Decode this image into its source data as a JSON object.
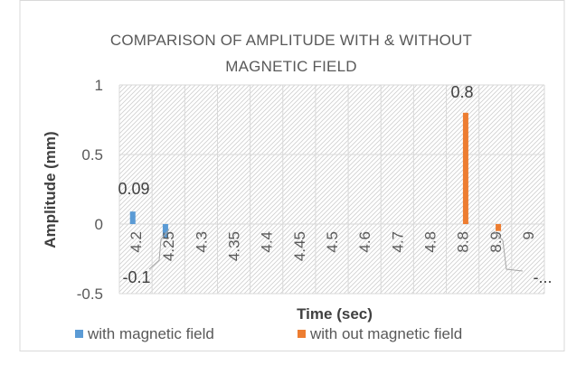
{
  "chart_data": {
    "type": "bar",
    "title_lines": [
      "COMPARISON OF AMPLITUDE WITH & WITHOUT",
      "MAGNETIC  FIELD"
    ],
    "xlabel": "Time (sec)",
    "ylabel": "Amplitude (mm)",
    "ylim": [
      -0.5,
      1
    ],
    "yticks": [
      -0.5,
      0,
      0.5,
      1
    ],
    "ytick_labels": [
      "-0.5",
      "0",
      "0.5",
      "1"
    ],
    "categories": [
      "4.2",
      "4.25",
      "4.3",
      "4.35",
      "4.4",
      "4.45",
      "4.5",
      "4.6",
      "4.7",
      "4.8",
      "8.8",
      "8.9",
      "9"
    ],
    "series": [
      {
        "name": "with magnetic field",
        "color": "#5B9BD5",
        "values": [
          0.09,
          -0.1,
          null,
          null,
          null,
          null,
          null,
          null,
          null,
          null,
          null,
          null,
          null
        ]
      },
      {
        "name": "with out magnetic field",
        "color": "#ED7D31",
        "values": [
          null,
          null,
          null,
          null,
          null,
          null,
          null,
          null,
          null,
          null,
          0.8,
          -0.05,
          null
        ]
      }
    ],
    "data_labels": [
      "0.09",
      "-0.1",
      "0.8",
      "-..."
    ],
    "legend_position": "bottom",
    "plot_background": "diagonal-hatch",
    "grid": true
  }
}
